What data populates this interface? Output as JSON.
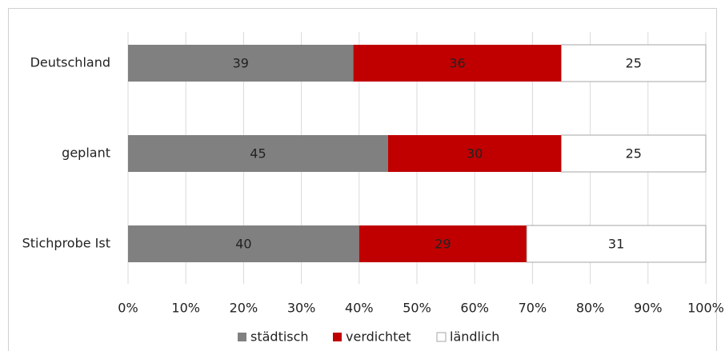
{
  "chart_data": {
    "type": "stacked_bar_horizontal",
    "categories": [
      "Deutschland",
      "geplant",
      "Stichprobe Ist"
    ],
    "series": [
      {
        "name": "städtisch",
        "color": "#808080",
        "values": [
          39,
          45,
          40
        ]
      },
      {
        "name": "verdichtet",
        "color": "#c00000",
        "values": [
          36,
          30,
          29
        ]
      },
      {
        "name": "ländlich",
        "color": "#ffffff",
        "values": [
          25,
          25,
          31
        ]
      }
    ],
    "xlim": [
      0,
      100
    ],
    "xticks": [
      {
        "value": 0,
        "label": "0%"
      },
      {
        "value": 10,
        "label": "10%"
      },
      {
        "value": 20,
        "label": "20%"
      },
      {
        "value": 30,
        "label": "30%"
      },
      {
        "value": 40,
        "label": "40%"
      },
      {
        "value": 50,
        "label": "50%"
      },
      {
        "value": 60,
        "label": "60%"
      },
      {
        "value": 70,
        "label": "70%"
      },
      {
        "value": 80,
        "label": "80%"
      },
      {
        "value": 90,
        "label": "90%"
      },
      {
        "value": 100,
        "label": "100%"
      }
    ],
    "grid": true,
    "legend": "bottom"
  }
}
